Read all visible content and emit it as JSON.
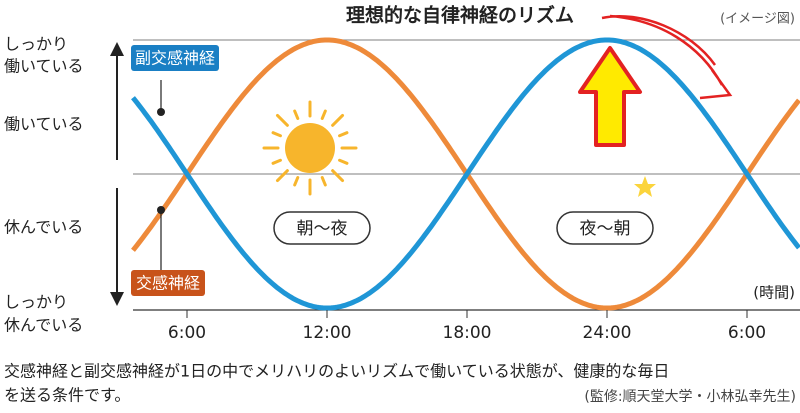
{
  "header": {
    "title": "理想的な自律神経のリズム",
    "note": "(イメージ図)"
  },
  "y_labels": [
    [
      "しっかり",
      "働いている"
    ],
    [
      "働いている"
    ],
    [
      "休んでいる"
    ],
    [
      "しっかり",
      "休んでいる"
    ]
  ],
  "series_labels": {
    "parasympathetic": "副交感神経",
    "sympathetic": "交感神経"
  },
  "periods": [
    "朝〜夜",
    "夜〜朝"
  ],
  "x_labels": [
    "6:00",
    "12:00",
    "18:00",
    "24:00",
    "6:00"
  ],
  "x_unit": "(時間)",
  "footer": {
    "lines": [
      "交感神経と副交感神経が1日の中でメリハリのよいリズムで働いている状態が、健康的な毎日",
      "を送る条件です。"
    ],
    "credit": "(監修:順天堂大学・小林弘幸先生)"
  }
}
